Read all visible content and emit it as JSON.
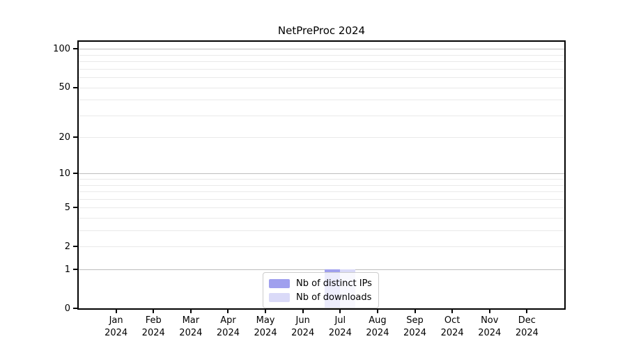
{
  "chart_data": {
    "type": "bar",
    "title": "NetPreProc 2024",
    "categories": [
      "Jan 2024",
      "Feb 2024",
      "Mar 2024",
      "Apr 2024",
      "May 2024",
      "Jun 2024",
      "Jul 2024",
      "Aug 2024",
      "Sep 2024",
      "Oct 2024",
      "Nov 2024",
      "Dec 2024"
    ],
    "series": [
      {
        "name": "Nb of distinct IPs",
        "color": "#a0a0ee",
        "values": [
          0,
          0,
          0,
          0,
          0,
          0,
          1,
          0,
          0,
          0,
          0,
          0
        ]
      },
      {
        "name": "Nb of downloads",
        "color": "#dadaf8",
        "values": [
          0,
          0,
          0,
          0,
          0,
          0,
          1,
          0,
          0,
          0,
          0,
          0
        ]
      }
    ],
    "xlabel": "",
    "ylabel": "",
    "yscale": "log1p",
    "ylim": [
      0,
      114
    ],
    "y_tick_labels": [
      "0",
      "1",
      "2",
      "5",
      "10",
      "20",
      "50",
      "100"
    ],
    "y_tick_values": [
      0,
      1,
      2,
      5,
      10,
      20,
      50,
      100
    ],
    "y_major_gridlines": [
      1,
      10,
      100
    ],
    "y_minor_gridlines": [
      2,
      3,
      4,
      5,
      6,
      7,
      8,
      9,
      20,
      30,
      40,
      50,
      60,
      70,
      80,
      90
    ],
    "grid": true,
    "legend_position": "lower center"
  },
  "legend": {
    "items": [
      {
        "label": "Nb of distinct IPs",
        "color": "#a0a0ee"
      },
      {
        "label": "Nb of downloads",
        "color": "#dadaf8"
      }
    ]
  },
  "colors": {
    "background": "#ffffff",
    "spine": "#000000",
    "grid_major": "#bdbdbd",
    "grid_minor": "#e9e9e9",
    "text": "#000000"
  }
}
